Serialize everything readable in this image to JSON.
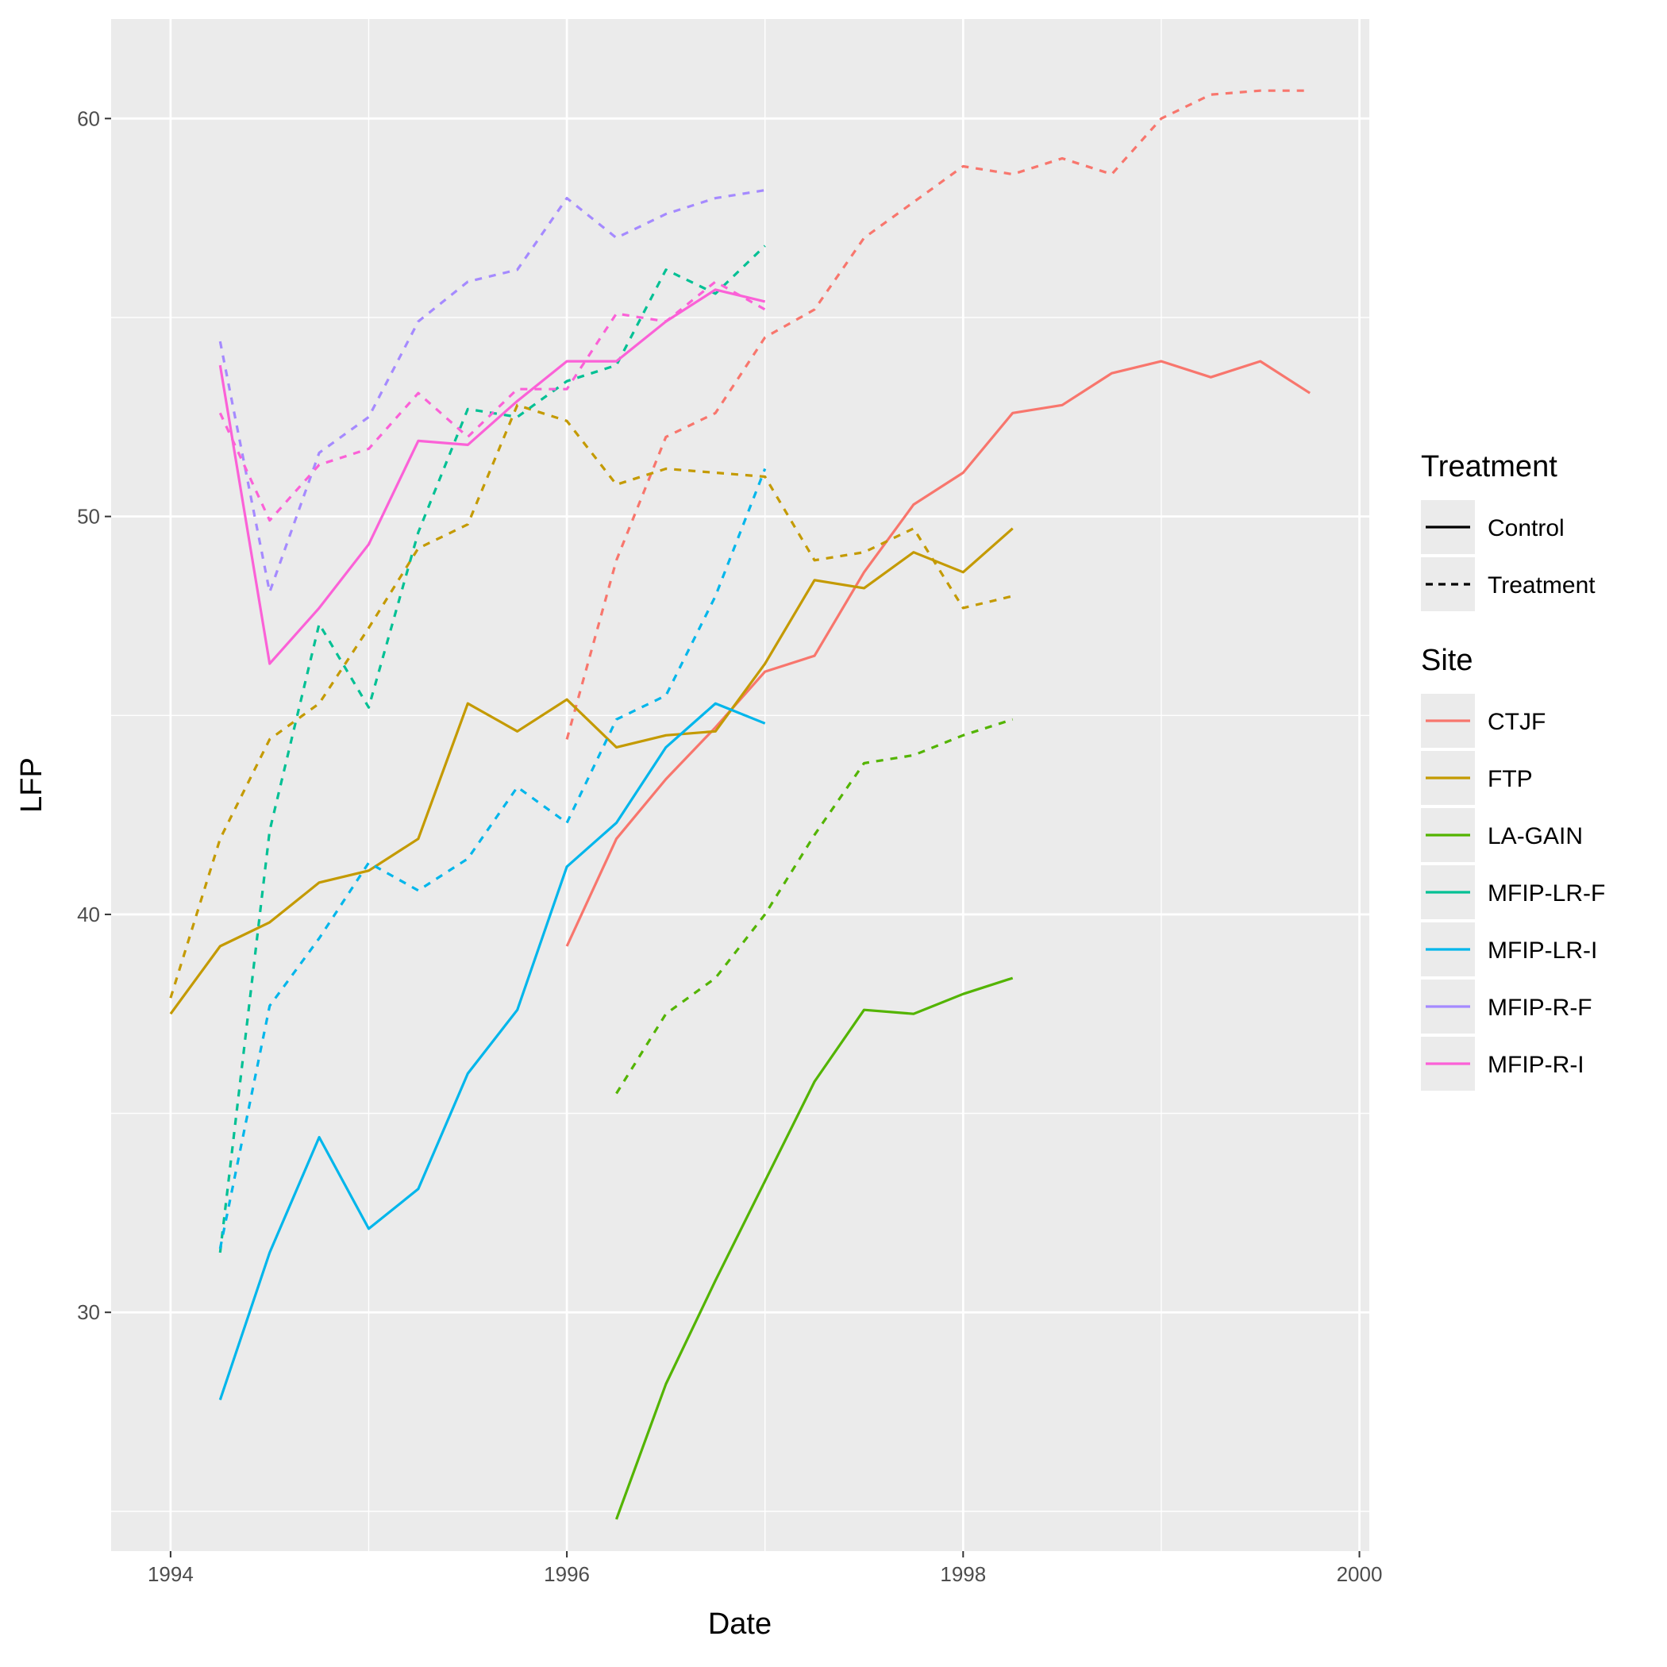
{
  "chart_data": {
    "type": "line",
    "xlabel": "Date",
    "ylabel": "LFP",
    "xlim": [
      1993.7,
      2000.05
    ],
    "ylim": [
      24.0,
      62.5
    ],
    "x_ticks": [
      1994,
      1996,
      1998,
      2000
    ],
    "x_tick_labels": [
      "1994",
      "1996",
      "1998",
      "2000"
    ],
    "y_ticks": [
      30,
      40,
      50,
      60
    ],
    "y_tick_labels": [
      "30",
      "40",
      "50",
      "60"
    ],
    "grid": true,
    "legend_position": "right",
    "legends": [
      {
        "title": "Treatment",
        "entries": [
          {
            "label": "Control",
            "linetype": "solid"
          },
          {
            "label": "Treatment",
            "linetype": "dashed"
          }
        ]
      },
      {
        "title": "Site",
        "entries": [
          {
            "label": "CTJF",
            "color": "#F8766D"
          },
          {
            "label": "FTP",
            "color": "#C49A00"
          },
          {
            "label": "LA-GAIN",
            "color": "#53B400"
          },
          {
            "label": "MFIP-LR-F",
            "color": "#00C094"
          },
          {
            "label": "MFIP-LR-I",
            "color": "#00B6EB"
          },
          {
            "label": "MFIP-R-F",
            "color": "#A58AFF"
          },
          {
            "label": "MFIP-R-I",
            "color": "#FB61D7"
          }
        ]
      }
    ],
    "series": [
      {
        "site": "CTJF",
        "treatment": "Control",
        "color": "#F8766D",
        "linetype": "solid",
        "x": [
          1996.0,
          1996.25,
          1996.5,
          1996.75,
          1997.0,
          1997.25,
          1997.5,
          1997.75,
          1998.0,
          1998.25,
          1998.5,
          1998.75,
          1999.0,
          1999.25,
          1999.5,
          1999.75
        ],
        "y": [
          39.2,
          41.9,
          43.4,
          44.7,
          46.1,
          46.5,
          48.6,
          50.3,
          51.1,
          52.6,
          52.8,
          53.6,
          53.9,
          53.5,
          53.9,
          53.1
        ]
      },
      {
        "site": "CTJF",
        "treatment": "Treatment",
        "color": "#F8766D",
        "linetype": "dashed",
        "x": [
          1996.0,
          1996.25,
          1996.5,
          1996.75,
          1997.0,
          1997.25,
          1997.5,
          1997.75,
          1998.0,
          1998.25,
          1998.5,
          1998.75,
          1999.0,
          1999.25,
          1999.5,
          1999.75
        ],
        "y": [
          44.4,
          48.9,
          52.0,
          52.6,
          54.5,
          55.2,
          57.0,
          57.9,
          58.8,
          58.6,
          59.0,
          58.6,
          60.0,
          60.6,
          60.7,
          60.7
        ]
      },
      {
        "site": "FTP",
        "treatment": "Control",
        "color": "#C49A00",
        "linetype": "solid",
        "x": [
          1994.0,
          1994.25,
          1994.5,
          1994.75,
          1995.0,
          1995.25,
          1995.5,
          1995.75,
          1996.0,
          1996.25,
          1996.5,
          1996.75,
          1997.0,
          1997.25,
          1997.5,
          1997.75,
          1998.0,
          1998.25
        ],
        "y": [
          37.5,
          39.2,
          39.8,
          40.8,
          41.1,
          41.9,
          45.3,
          44.6,
          45.4,
          44.2,
          44.5,
          44.6,
          46.3,
          48.4,
          48.2,
          49.1,
          48.6,
          49.7
        ]
      },
      {
        "site": "FTP",
        "treatment": "Treatment",
        "color": "#C49A00",
        "linetype": "dashed",
        "x": [
          1994.0,
          1994.25,
          1994.5,
          1994.75,
          1995.0,
          1995.25,
          1995.5,
          1995.75,
          1996.0,
          1996.25,
          1996.5,
          1996.75,
          1997.0,
          1997.25,
          1997.5,
          1997.75,
          1998.0,
          1998.25
        ],
        "y": [
          37.9,
          41.9,
          44.4,
          45.3,
          47.2,
          49.2,
          49.8,
          52.8,
          52.4,
          50.8,
          51.2,
          51.1,
          51.0,
          48.9,
          49.1,
          49.7,
          47.7,
          48.0
        ]
      },
      {
        "site": "LA-GAIN",
        "treatment": "Control",
        "color": "#53B400",
        "linetype": "solid",
        "x": [
          1996.25,
          1996.5,
          1996.75,
          1997.0,
          1997.25,
          1997.5,
          1997.75,
          1998.0,
          1998.25
        ],
        "y": [
          24.8,
          28.2,
          30.8,
          33.3,
          35.8,
          37.6,
          37.5,
          38.0,
          38.4
        ]
      },
      {
        "site": "LA-GAIN",
        "treatment": "Treatment",
        "color": "#53B400",
        "linetype": "dashed",
        "x": [
          1996.25,
          1996.5,
          1996.75,
          1997.0,
          1997.25,
          1997.5,
          1997.75,
          1998.0,
          1998.25
        ],
        "y": [
          35.5,
          37.5,
          38.4,
          40.0,
          42.0,
          43.8,
          44.0,
          44.5,
          44.9
        ]
      },
      {
        "site": "MFIP-LR-F",
        "treatment": "Treatment",
        "color": "#00C094",
        "linetype": "dashed",
        "x": [
          1994.25,
          1994.5,
          1994.75,
          1995.0,
          1995.25,
          1995.5,
          1995.75,
          1996.0,
          1996.25,
          1996.5,
          1996.75,
          1997.0
        ],
        "y": [
          31.5,
          42.1,
          47.3,
          45.2,
          49.6,
          52.7,
          52.5,
          53.4,
          53.8,
          56.2,
          55.6,
          56.8
        ]
      },
      {
        "site": "MFIP-LR-I",
        "treatment": "Control",
        "color": "#00B6EB",
        "linetype": "solid",
        "x": [
          1994.25,
          1994.5,
          1994.75,
          1995.0,
          1995.25,
          1995.5,
          1995.75,
          1996.0,
          1996.25,
          1996.5,
          1996.75,
          1997.0
        ],
        "y": [
          27.8,
          31.5,
          34.4,
          32.1,
          33.1,
          36.0,
          37.6,
          41.2,
          42.3,
          44.2,
          45.3,
          44.8
        ]
      },
      {
        "site": "MFIP-LR-I",
        "treatment": "Treatment",
        "color": "#00B6EB",
        "linetype": "dashed",
        "x": [
          1994.25,
          1994.5,
          1994.75,
          1995.0,
          1995.25,
          1995.5,
          1995.75,
          1996.0,
          1996.25,
          1996.5,
          1996.75,
          1997.0
        ],
        "y": [
          31.6,
          37.7,
          39.4,
          41.3,
          40.6,
          41.4,
          43.2,
          42.3,
          44.9,
          45.5,
          48.0,
          51.2
        ]
      },
      {
        "site": "MFIP-R-F",
        "treatment": "Treatment",
        "color": "#A58AFF",
        "linetype": "dashed",
        "x": [
          1994.25,
          1994.5,
          1994.75,
          1995.0,
          1995.25,
          1995.5,
          1995.75,
          1996.0,
          1996.25,
          1996.5,
          1996.75,
          1997.0
        ],
        "y": [
          54.4,
          48.1,
          51.6,
          52.5,
          54.9,
          55.9,
          56.2,
          58.0,
          57.0,
          57.6,
          58.0,
          58.2
        ]
      },
      {
        "site": "MFIP-R-I",
        "treatment": "Control",
        "color": "#FB61D7",
        "linetype": "solid",
        "x": [
          1994.25,
          1994.5,
          1994.75,
          1995.0,
          1995.25,
          1995.5,
          1995.75,
          1996.0,
          1996.25,
          1996.5,
          1996.75,
          1997.0
        ],
        "y": [
          53.8,
          46.3,
          47.7,
          49.3,
          51.9,
          51.8,
          52.9,
          53.9,
          53.9,
          54.9,
          55.7,
          55.4
        ]
      },
      {
        "site": "MFIP-R-I",
        "treatment": "Treatment",
        "color": "#FB61D7",
        "linetype": "dashed",
        "x": [
          1994.25,
          1994.5,
          1994.75,
          1995.0,
          1995.25,
          1995.5,
          1995.75,
          1996.0,
          1996.25,
          1996.5,
          1996.75,
          1997.0
        ],
        "y": [
          52.6,
          49.9,
          51.3,
          51.7,
          53.1,
          52.0,
          53.2,
          53.2,
          55.1,
          54.9,
          55.9,
          55.2
        ]
      }
    ]
  }
}
